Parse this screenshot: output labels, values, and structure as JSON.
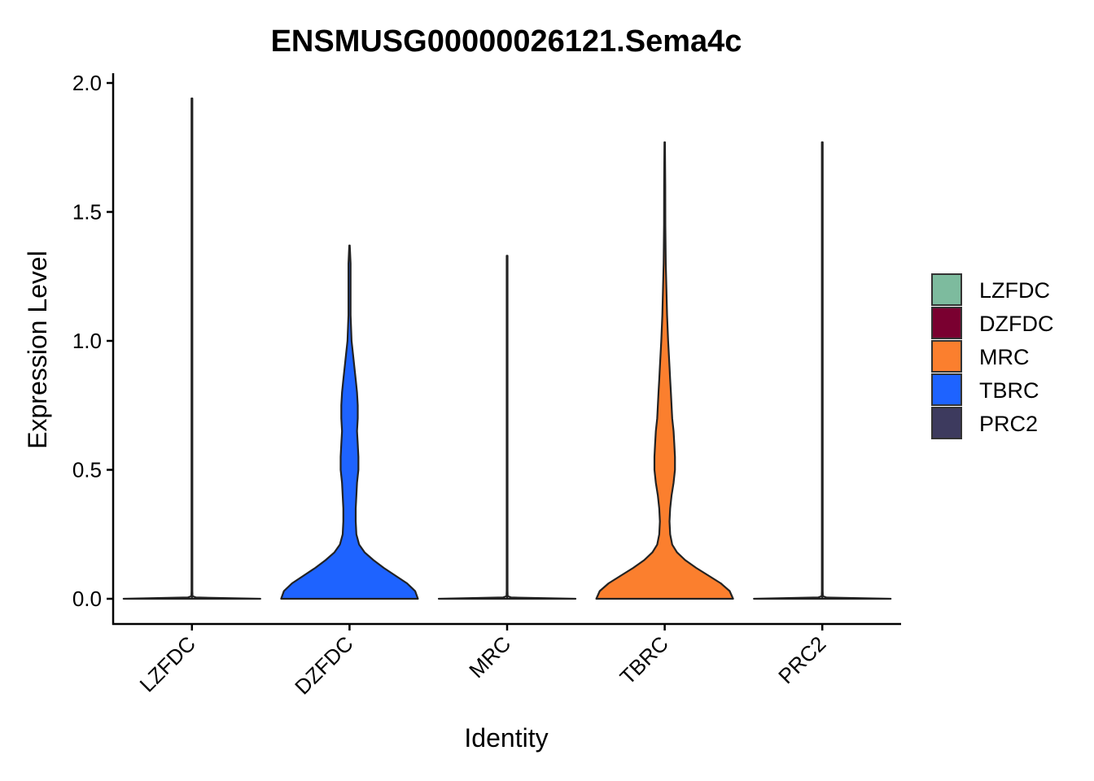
{
  "chart_data": {
    "type": "violin",
    "title": "ENSMUSG00000026121.Sema4c",
    "xlabel": "Identity",
    "ylabel": "Expression Level",
    "ylim": [
      -0.1,
      2.05
    ],
    "yticks": [
      "0.0",
      "0.5",
      "1.0",
      "1.5",
      "2.0"
    ],
    "categories": [
      "LZFDC",
      "DZFDC",
      "MRC",
      "TBRC",
      "PRC2"
    ],
    "colors": {
      "LZFDC": "#7DBB9E",
      "DZFDC": "#7A0030",
      "MRC": "#FB7F2E",
      "TBRC": "#1E63FF",
      "PRC2": "#3D3A5E"
    },
    "violins": [
      {
        "category": "LZFDC",
        "max": 1.94,
        "filled": false,
        "density": [
          [
            0.0,
            1.0
          ],
          [
            0.005,
            0.06
          ],
          [
            0.01,
            0.008
          ],
          [
            0.03,
            0.006
          ],
          [
            1.94,
            0.006
          ]
        ]
      },
      {
        "category": "DZFDC",
        "max": 1.37,
        "filled": true,
        "fill_color": "#1E63FF",
        "density": [
          [
            0.0,
            1.0
          ],
          [
            0.03,
            0.96
          ],
          [
            0.06,
            0.84
          ],
          [
            0.09,
            0.67
          ],
          [
            0.12,
            0.5
          ],
          [
            0.15,
            0.35
          ],
          [
            0.18,
            0.22
          ],
          [
            0.21,
            0.14
          ],
          [
            0.25,
            0.1
          ],
          [
            0.3,
            0.09
          ],
          [
            0.35,
            0.09
          ],
          [
            0.4,
            0.1
          ],
          [
            0.45,
            0.11
          ],
          [
            0.5,
            0.13
          ],
          [
            0.55,
            0.13
          ],
          [
            0.6,
            0.12
          ],
          [
            0.65,
            0.11
          ],
          [
            0.7,
            0.12
          ],
          [
            0.75,
            0.12
          ],
          [
            0.8,
            0.11
          ],
          [
            0.85,
            0.09
          ],
          [
            0.9,
            0.07
          ],
          [
            0.95,
            0.05
          ],
          [
            1.0,
            0.03
          ],
          [
            1.1,
            0.015
          ],
          [
            1.2,
            0.015
          ],
          [
            1.3,
            0.015
          ],
          [
            1.37,
            0.004
          ]
        ]
      },
      {
        "category": "MRC",
        "max": 1.33,
        "filled": false,
        "density": [
          [
            0.0,
            1.0
          ],
          [
            0.005,
            0.06
          ],
          [
            0.01,
            0.008
          ],
          [
            0.03,
            0.006
          ],
          [
            1.33,
            0.006
          ]
        ]
      },
      {
        "category": "TBRC",
        "max": 1.77,
        "filled": true,
        "fill_color": "#FB7F2E",
        "density": [
          [
            0.0,
            1.0
          ],
          [
            0.03,
            0.95
          ],
          [
            0.06,
            0.82
          ],
          [
            0.09,
            0.64
          ],
          [
            0.12,
            0.46
          ],
          [
            0.15,
            0.3
          ],
          [
            0.18,
            0.18
          ],
          [
            0.21,
            0.11
          ],
          [
            0.25,
            0.08
          ],
          [
            0.3,
            0.07
          ],
          [
            0.35,
            0.08
          ],
          [
            0.4,
            0.1
          ],
          [
            0.45,
            0.13
          ],
          [
            0.5,
            0.15
          ],
          [
            0.55,
            0.15
          ],
          [
            0.6,
            0.14
          ],
          [
            0.65,
            0.13
          ],
          [
            0.7,
            0.11
          ],
          [
            0.75,
            0.1
          ],
          [
            0.8,
            0.09
          ],
          [
            0.85,
            0.08
          ],
          [
            0.9,
            0.07
          ],
          [
            1.0,
            0.05
          ],
          [
            1.1,
            0.035
          ],
          [
            1.2,
            0.025
          ],
          [
            1.3,
            0.015
          ],
          [
            1.45,
            0.01
          ],
          [
            1.6,
            0.008
          ],
          [
            1.77,
            0.003
          ]
        ]
      },
      {
        "category": "PRC2",
        "max": 1.77,
        "filled": false,
        "density": [
          [
            0.0,
            1.0
          ],
          [
            0.005,
            0.06
          ],
          [
            0.01,
            0.008
          ],
          [
            0.03,
            0.006
          ],
          [
            1.77,
            0.006
          ]
        ]
      }
    ],
    "legend": {
      "position": "right",
      "entries": [
        "LZFDC",
        "DZFDC",
        "MRC",
        "TBRC",
        "PRC2"
      ]
    },
    "grid": false
  }
}
